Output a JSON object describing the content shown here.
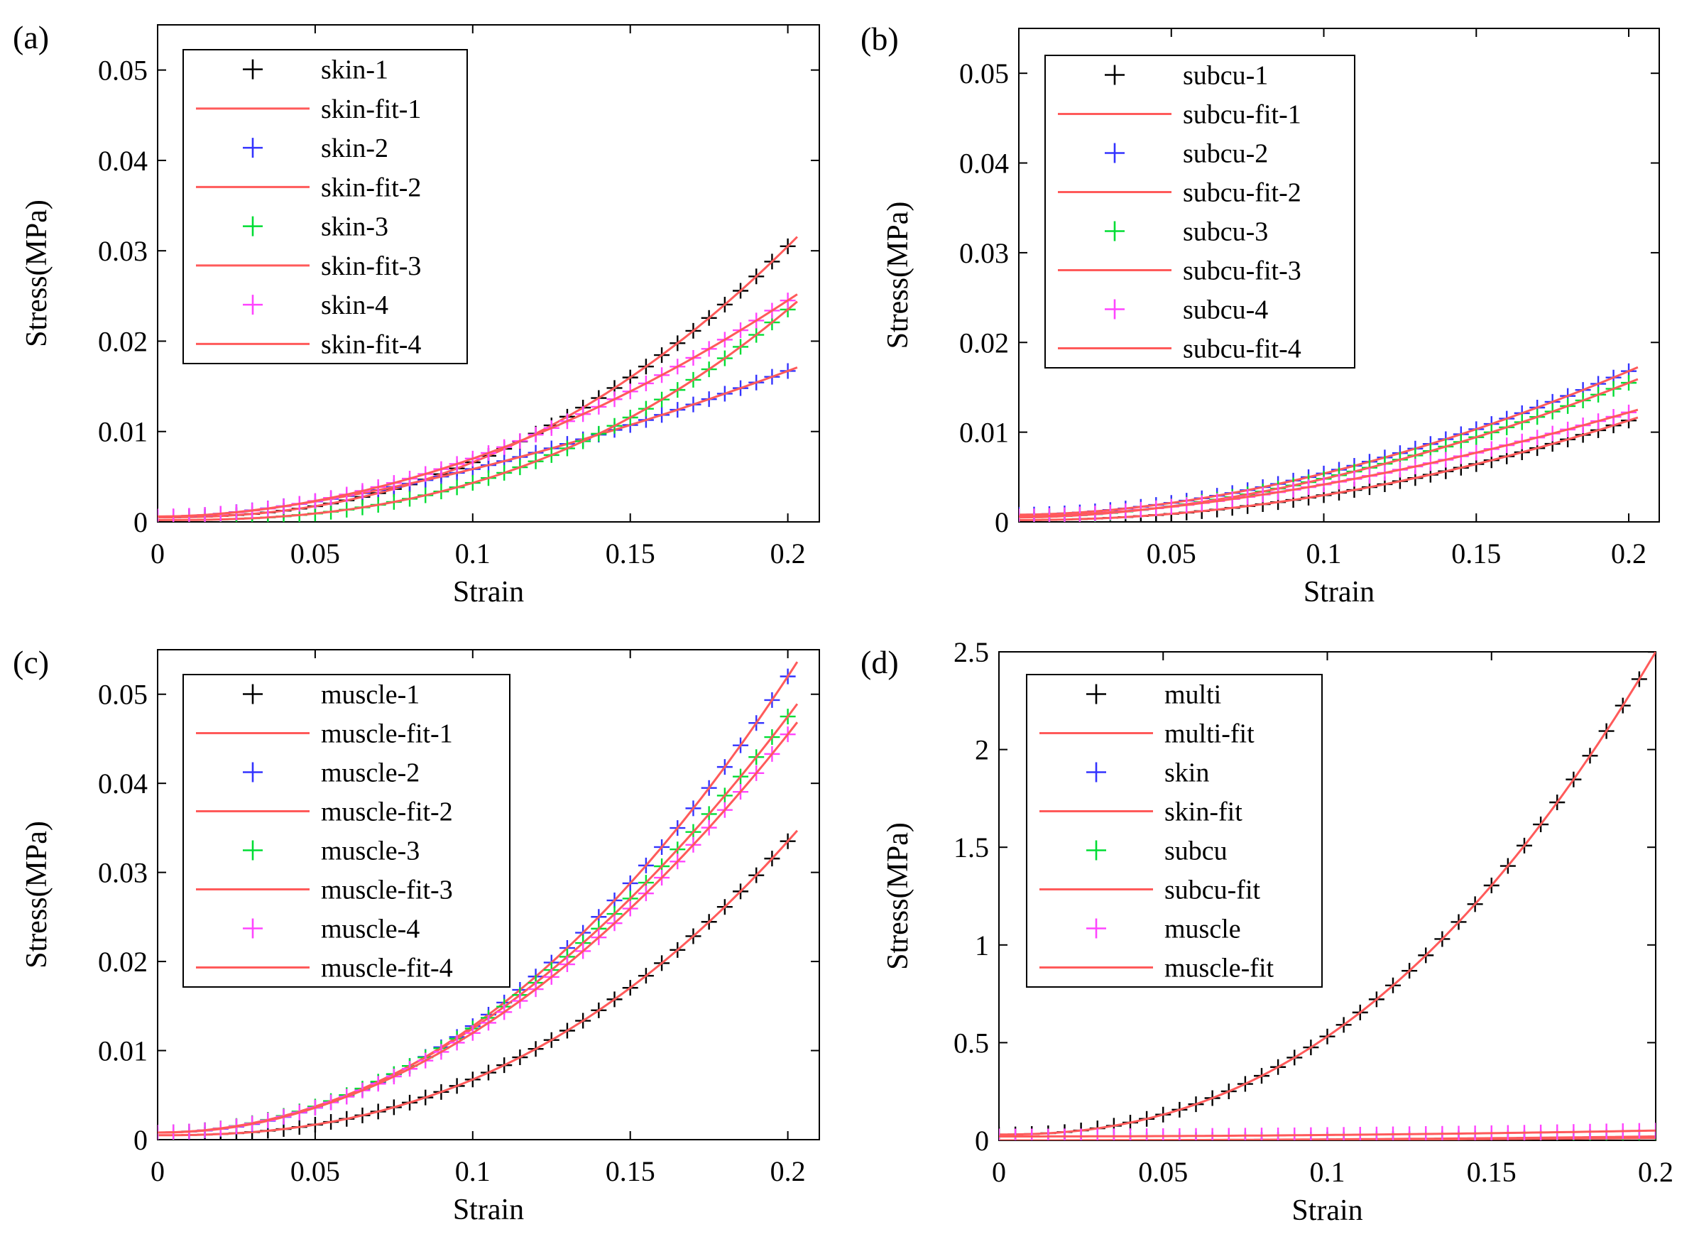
{
  "figure": {
    "fit_color": "#ff5a5a",
    "axes_color": "#000000"
  },
  "chart_data": [
    {
      "panel": "(a)",
      "type": "scatter",
      "xlabel": "Strain",
      "ylabel": "Stress(MPa)",
      "xlim": [
        0,
        0.21
      ],
      "ylim": [
        0,
        0.055
      ],
      "xticks": [
        0,
        0.05,
        0.1,
        0.15,
        0.2
      ],
      "xtick_labels": [
        "0",
        "0.05",
        "0.1",
        "0.15",
        "0.2"
      ],
      "yticks": [
        0,
        0.01,
        0.02,
        0.03,
        0.04,
        0.05
      ],
      "ytick_labels": [
        "0",
        "0.01",
        "0.02",
        "0.03",
        "0.04",
        "0.05"
      ],
      "legend_position": "top-left",
      "series": [
        {
          "name": "skin-1",
          "fit_name": "skin-fit-1",
          "color": "#000000",
          "x_start": 0,
          "x_end": 0.2,
          "y0": 0.0005,
          "y1": 0.0305,
          "power": 2.3
        },
        {
          "name": "skin-2",
          "fit_name": "skin-fit-2",
          "color": "#3333ff",
          "x_start": 0,
          "x_end": 0.2,
          "y0": 0.0005,
          "y1": 0.0167,
          "power": 1.6
        },
        {
          "name": "skin-3",
          "fit_name": "skin-fit-3",
          "color": "#00dd33",
          "x_start": 0,
          "x_end": 0.2,
          "y0": 0.0002,
          "y1": 0.0235,
          "power": 2.5
        },
        {
          "name": "skin-4",
          "fit_name": "skin-fit-4",
          "color": "#ff44ff",
          "x_start": 0,
          "x_end": 0.2,
          "y0": 0.0006,
          "y1": 0.0245,
          "power": 1.9
        }
      ]
    },
    {
      "panel": "(b)",
      "type": "scatter",
      "xlabel": "Strain",
      "ylabel": "Stress(MPa)",
      "xlim": [
        0,
        0.21
      ],
      "ylim": [
        0,
        0.055
      ],
      "xticks": [
        0.05,
        0.1,
        0.15,
        0.2
      ],
      "xtick_labels": [
        "0.05",
        "0.1",
        "0.15",
        "0.2"
      ],
      "yticks": [
        0,
        0.01,
        0.02,
        0.03,
        0.04,
        0.05
      ],
      "ytick_labels": [
        "0",
        "0.01",
        "0.02",
        "0.03",
        "0.04",
        "0.05"
      ],
      "legend_position": "top-left",
      "series": [
        {
          "name": "subcu-1",
          "fit_name": "subcu-fit-1",
          "color": "#000000",
          "x_start": 0,
          "x_end": 0.2,
          "y0": 0.0002,
          "y1": 0.0113,
          "power": 2.0
        },
        {
          "name": "subcu-2",
          "fit_name": "subcu-fit-2",
          "color": "#3333ff",
          "x_start": 0,
          "x_end": 0.2,
          "y0": 0.0008,
          "y1": 0.0168,
          "power": 1.8
        },
        {
          "name": "subcu-3",
          "fit_name": "subcu-fit-3",
          "color": "#00dd33",
          "x_start": 0,
          "x_end": 0.2,
          "y0": 0.0005,
          "y1": 0.0155,
          "power": 1.8
        },
        {
          "name": "subcu-4",
          "fit_name": "subcu-fit-4",
          "color": "#ff44ff",
          "x_start": 0,
          "x_end": 0.2,
          "y0": 0.0006,
          "y1": 0.0122,
          "power": 1.7
        }
      ]
    },
    {
      "panel": "(c)",
      "type": "scatter",
      "xlabel": "Strain",
      "ylabel": "Stress(MPa)",
      "xlim": [
        0,
        0.21
      ],
      "ylim": [
        0,
        0.055
      ],
      "xticks": [
        0,
        0.05,
        0.1,
        0.15,
        0.2
      ],
      "xtick_labels": [
        "0",
        "0.05",
        "0.1",
        "0.15",
        "0.2"
      ],
      "yticks": [
        0,
        0.01,
        0.02,
        0.03,
        0.04,
        0.05
      ],
      "ytick_labels": [
        "0",
        "0.01",
        "0.02",
        "0.03",
        "0.04",
        "0.05"
      ],
      "legend_position": "top-left",
      "series": [
        {
          "name": "muscle-1",
          "fit_name": "muscle-fit-1",
          "color": "#000000",
          "x_start": 0,
          "x_end": 0.2,
          "y0": 0.0005,
          "y1": 0.0335,
          "power": 2.4
        },
        {
          "name": "muscle-2",
          "fit_name": "muscle-fit-2",
          "color": "#3333ff",
          "x_start": 0,
          "x_end": 0.2,
          "y0": 0.0008,
          "y1": 0.052,
          "power": 2.1
        },
        {
          "name": "muscle-3",
          "fit_name": "muscle-fit-3",
          "color": "#00dd33",
          "x_start": 0,
          "x_end": 0.2,
          "y0": 0.0008,
          "y1": 0.0475,
          "power": 2.0
        },
        {
          "name": "muscle-4",
          "fit_name": "muscle-fit-4",
          "color": "#ff44ff",
          "x_start": 0,
          "x_end": 0.2,
          "y0": 0.0008,
          "y1": 0.0455,
          "power": 2.0
        }
      ]
    },
    {
      "panel": "(d)",
      "type": "scatter",
      "xlabel": "Strain",
      "ylabel": "Stress(MPa)",
      "xlim": [
        0,
        0.2
      ],
      "ylim": [
        0,
        2.5
      ],
      "xticks": [
        0,
        0.05,
        0.1,
        0.15,
        0.2
      ],
      "xtick_labels": [
        "0",
        "0.05",
        "0.1",
        "0.15",
        "0.2"
      ],
      "yticks": [
        0,
        0.5,
        1,
        1.5,
        2,
        2.5
      ],
      "ytick_labels": [
        "0",
        "0.5",
        "1",
        "1.5",
        "2",
        "2.5"
      ],
      "legend_position": "top-left",
      "series": [
        {
          "name": "multi",
          "fit_name": "multi-fit",
          "color": "#000000",
          "x_start": 0,
          "x_end": 0.2,
          "y0": 0.03,
          "y1": 2.5,
          "power": 2.3
        },
        {
          "name": "skin",
          "fit_name": "skin-fit",
          "color": "#3333ff",
          "x_start": 0,
          "x_end": 0.2,
          "y0": 0.0,
          "y1": 0.02,
          "power": 2.0
        },
        {
          "name": "subcu",
          "fit_name": "subcu-fit",
          "color": "#00dd33",
          "x_start": 0,
          "x_end": 0.2,
          "y0": 0.0,
          "y1": 0.012,
          "power": 2.0
        },
        {
          "name": "muscle",
          "fit_name": "muscle-fit",
          "color": "#ff44ff",
          "x_start": 0,
          "x_end": 0.2,
          "y0": 0.02,
          "y1": 0.05,
          "power": 2.0
        }
      ]
    }
  ]
}
